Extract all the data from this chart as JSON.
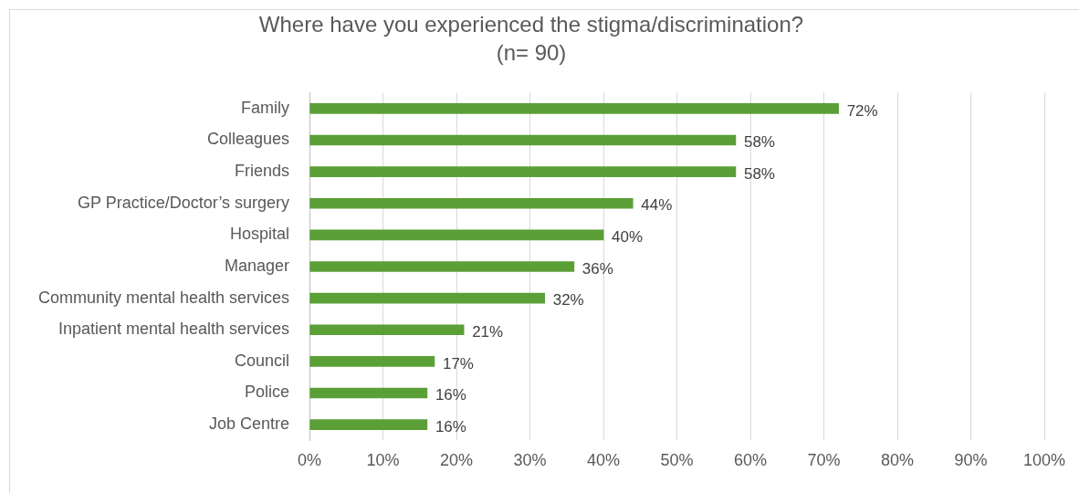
{
  "chart_data": {
    "type": "bar",
    "orientation": "horizontal",
    "title": "Where have you experienced the stigma/discrimination?",
    "subtitle": "(n= 90)",
    "categories": [
      "Family",
      "Colleagues",
      "Friends",
      "GP Practice/Doctor’s surgery",
      "Hospital",
      "Manager",
      "Community mental health services",
      "Inpatient mental health services",
      "Council",
      "Police",
      "Job Centre"
    ],
    "values": [
      72,
      58,
      58,
      44,
      40,
      36,
      32,
      21,
      17,
      16,
      16
    ],
    "value_labels": [
      "72%",
      "58%",
      "58%",
      "44%",
      "40%",
      "36%",
      "32%",
      "21%",
      "17%",
      "16%",
      "16%"
    ],
    "color": "#5b9f37",
    "xlim": [
      0,
      100
    ],
    "xticks": [
      {
        "value": 0,
        "label": "0%"
      },
      {
        "value": 10,
        "label": "10%"
      },
      {
        "value": 20,
        "label": "20%"
      },
      {
        "value": 30,
        "label": "30%"
      },
      {
        "value": 40,
        "label": "40%"
      },
      {
        "value": 50,
        "label": "50%"
      },
      {
        "value": 60,
        "label": "60%"
      },
      {
        "value": 70,
        "label": "70%"
      },
      {
        "value": 80,
        "label": "80%"
      },
      {
        "value": 90,
        "label": "90%"
      },
      {
        "value": 100,
        "label": "100%"
      }
    ],
    "grid": "x",
    "legend": false
  }
}
